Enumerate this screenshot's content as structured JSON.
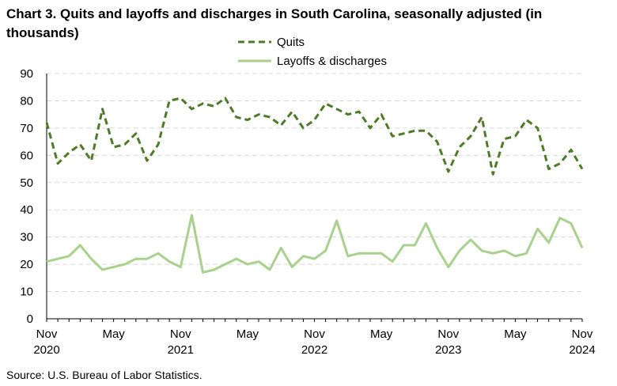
{
  "title": "Chart 3. Quits and layoffs and discharges in South Carolina, seasonally adjusted (in thousands)",
  "source": "Source: U.S. Bureau of Labor Statistics.",
  "chart_data": {
    "type": "line",
    "title": "Chart 3. Quits and layoffs and discharges in South Carolina, seasonally adjusted (in thousands)",
    "xlabel": "",
    "ylabel": "",
    "ylim": [
      0,
      90
    ],
    "yticks": [
      0,
      10,
      20,
      30,
      40,
      50,
      60,
      70,
      80,
      90
    ],
    "grid": true,
    "legend_position": "top-center",
    "x": [
      "2020-11",
      "2020-12",
      "2021-01",
      "2021-02",
      "2021-03",
      "2021-04",
      "2021-05",
      "2021-06",
      "2021-07",
      "2021-08",
      "2021-09",
      "2021-10",
      "2021-11",
      "2021-12",
      "2022-01",
      "2022-02",
      "2022-03",
      "2022-04",
      "2022-05",
      "2022-06",
      "2022-07",
      "2022-08",
      "2022-09",
      "2022-10",
      "2022-11",
      "2022-12",
      "2023-01",
      "2023-02",
      "2023-03",
      "2023-04",
      "2023-05",
      "2023-06",
      "2023-07",
      "2023-08",
      "2023-09",
      "2023-10",
      "2023-11",
      "2023-12",
      "2024-01",
      "2024-02",
      "2024-03",
      "2024-04",
      "2024-05",
      "2024-06",
      "2024-07",
      "2024-08",
      "2024-09",
      "2024-10",
      "2024-11"
    ],
    "x_tick_labels": [
      {
        "month": "Nov",
        "year": "2020",
        "index": 0
      },
      {
        "month": "May",
        "year": "",
        "index": 6
      },
      {
        "month": "Nov",
        "year": "2021",
        "index": 12
      },
      {
        "month": "May",
        "year": "",
        "index": 18
      },
      {
        "month": "Nov",
        "year": "2022",
        "index": 24
      },
      {
        "month": "May",
        "year": "",
        "index": 30
      },
      {
        "month": "Nov",
        "year": "2023",
        "index": 36
      },
      {
        "month": "May",
        "year": "",
        "index": 42
      },
      {
        "month": "Nov",
        "year": "2024",
        "index": 48
      }
    ],
    "series": [
      {
        "name": "Quits",
        "style": "dashed",
        "color": "#4f7a28",
        "values": [
          72,
          57,
          61,
          64,
          58,
          77,
          63,
          64,
          68,
          58,
          64,
          80,
          81,
          77,
          79,
          78,
          81,
          74,
          73,
          75,
          74,
          71,
          76,
          70,
          73,
          79,
          77,
          75,
          76,
          70,
          75,
          67,
          68,
          69,
          69,
          65,
          54,
          63,
          67,
          74,
          53,
          66,
          67,
          73,
          70,
          55,
          57,
          62,
          55
        ]
      },
      {
        "name": "Layoffs & discharges",
        "style": "solid",
        "color": "#a9d18e",
        "values": [
          21,
          22,
          23,
          27,
          22,
          18,
          19,
          20,
          22,
          22,
          24,
          21,
          19,
          38,
          17,
          18,
          20,
          22,
          20,
          21,
          18,
          26,
          19,
          23,
          22,
          25,
          36,
          23,
          24,
          24,
          24,
          21,
          27,
          27,
          35,
          26,
          19,
          25,
          29,
          25,
          24,
          25,
          23,
          24,
          33,
          28,
          37,
          35,
          26
        ]
      }
    ]
  }
}
